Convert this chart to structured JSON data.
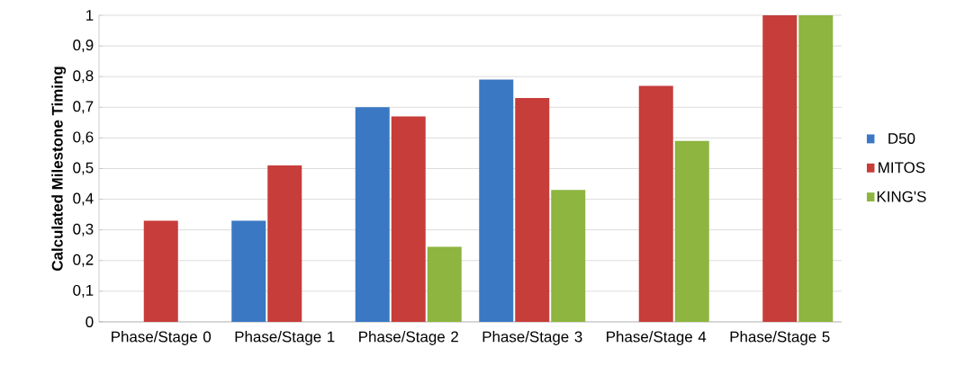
{
  "chart_data": {
    "type": "bar",
    "ylabel": "Calculated Milestone Timing",
    "categories": [
      "Phase/Stage 0",
      "Phase/Stage 1",
      "Phase/Stage 2",
      "Phase/Stage 3",
      "Phase/Stage 4",
      "Phase/Stage 5"
    ],
    "series": [
      {
        "name": "D50",
        "color": "#3a78c3",
        "values": [
          null,
          0.33,
          0.7,
          0.79,
          null,
          null
        ]
      },
      {
        "name": "MITOS",
        "color": "#c63d3a",
        "values": [
          0.33,
          0.51,
          0.67,
          0.73,
          0.77,
          1.0
        ]
      },
      {
        "name": "KING'S",
        "color": "#8db53f",
        "values": [
          null,
          null,
          0.245,
          0.43,
          0.59,
          1.0
        ]
      }
    ],
    "ylim": [
      0,
      1
    ],
    "yticks": [
      0,
      {
        "value": 0.1,
        "label": "0,1"
      },
      {
        "value": 0.2,
        "label": "0,2"
      },
      {
        "value": 0.3,
        "label": "0,3"
      },
      {
        "value": 0.4,
        "label": "0,4"
      },
      {
        "value": 0.5,
        "label": "0,5"
      },
      {
        "value": 0.6,
        "label": "0,6"
      },
      {
        "value": 0.7,
        "label": "0,7"
      },
      {
        "value": 0.8,
        "label": "0,8"
      },
      {
        "value": 0.9,
        "label": "0,9"
      },
      1
    ],
    "grid": "y",
    "legend": "right"
  }
}
